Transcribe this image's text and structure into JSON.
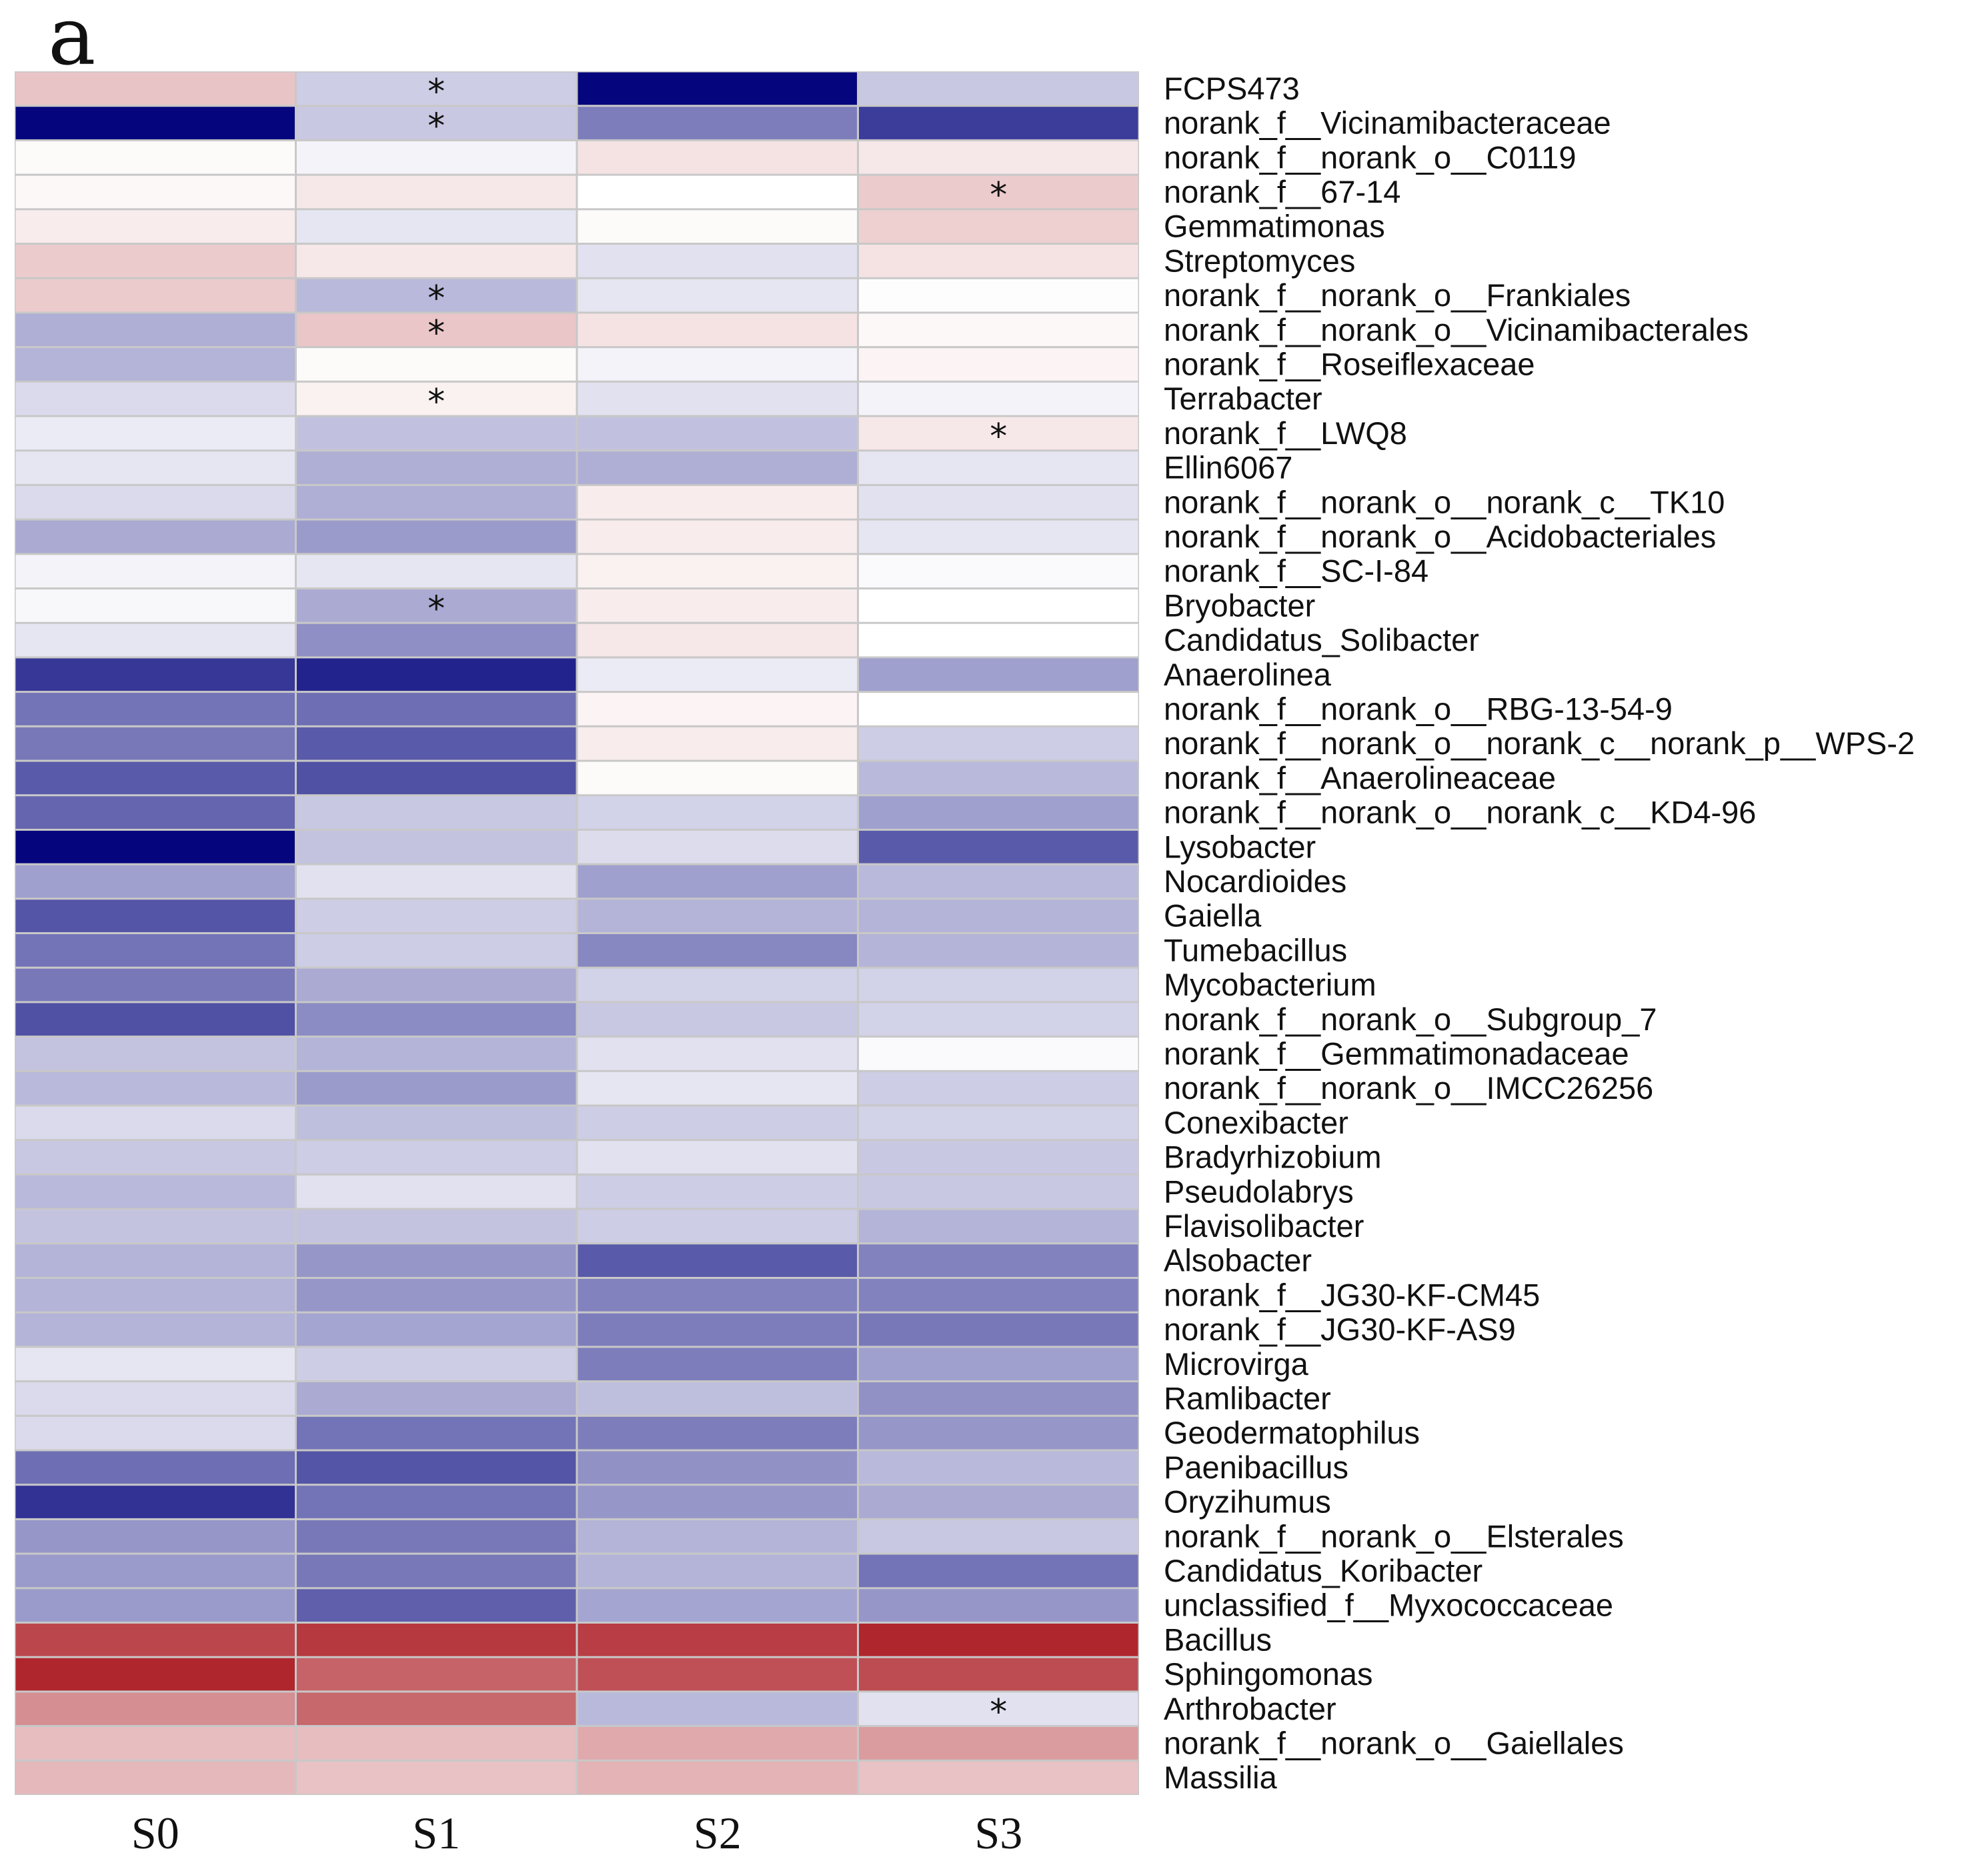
{
  "panel_label": "a",
  "chart_data": {
    "type": "heatmap",
    "title": "",
    "columns": [
      "S0",
      "S1",
      "S2",
      "S3"
    ],
    "rows": [
      "FCPS473",
      "norank_f__Vicinamibacteraceae",
      "norank_f__norank_o__C0119",
      "norank_f__67-14",
      "Gemmatimonas",
      "Streptomyces",
      "norank_f__norank_o__Frankiales",
      "norank_f__norank_o__Vicinamibacterales",
      "norank_f__Roseiflexaceae",
      "Terrabacter",
      "norank_f__LWQ8",
      "Ellin6067",
      "norank_f__norank_o__norank_c__TK10",
      "norank_f__norank_o__Acidobacteriales",
      "norank_f__SC-I-84",
      "Bryobacter",
      "Candidatus_Solibacter",
      "Anaerolinea",
      "norank_f__norank_o__RBG-13-54-9",
      "norank_f__norank_o__norank_c__norank_p__WPS-2",
      "norank_f__Anaerolineaceae",
      "norank_f__norank_o__norank_c__KD4-96",
      "Lysobacter",
      "Nocardioides",
      "Gaiella",
      "Tumebacillus",
      "Mycobacterium",
      "norank_f__norank_o__Subgroup_7",
      "norank_f__Gemmatimonadaceae",
      "norank_f__norank_o__IMCC26256",
      "Conexibacter",
      "Bradyrhizobium",
      "Pseudolabrys",
      "Flavisolibacter",
      "Alsobacter",
      "norank_f__JG30-KF-CM45",
      "norank_f__JG30-KF-AS9",
      "Microvirga",
      "Ramlibacter",
      "Geodermatophilus",
      "Paenibacillus",
      "Oryzihumus",
      "norank_f__norank_o__Elsterales",
      "Candidatus_Koribacter",
      "unclassified_f__Myxococcaceae",
      "Bacillus",
      "Sphingomonas",
      "Arthrobacter",
      "norank_f__norank_o__Gaiellales",
      "Massilia"
    ],
    "values": [
      [
        0.25,
        -0.2,
        -1.0,
        -0.22
      ],
      [
        -1.0,
        -0.22,
        -0.52,
        -0.78
      ],
      [
        0.02,
        -0.05,
        0.12,
        0.1
      ],
      [
        0.03,
        0.1,
        0.0,
        0.22
      ],
      [
        0.08,
        -0.1,
        0.02,
        0.2
      ],
      [
        0.22,
        0.1,
        -0.12,
        0.12
      ],
      [
        0.22,
        -0.28,
        -0.1,
        0.01
      ],
      [
        -0.32,
        0.24,
        0.12,
        0.03
      ],
      [
        -0.3,
        0.02,
        -0.05,
        0.05
      ],
      [
        -0.15,
        0.06,
        -0.12,
        -0.05
      ],
      [
        -0.08,
        -0.25,
        -0.25,
        0.1
      ],
      [
        -0.1,
        -0.32,
        -0.32,
        -0.1
      ],
      [
        -0.15,
        -0.32,
        0.08,
        -0.12
      ],
      [
        -0.34,
        -0.4,
        0.08,
        -0.1
      ],
      [
        -0.05,
        -0.1,
        0.06,
        -0.02
      ],
      [
        -0.03,
        -0.34,
        0.08,
        0.0
      ],
      [
        -0.1,
        -0.45,
        0.1,
        0.0
      ],
      [
        -0.8,
        -0.88,
        -0.08,
        -0.38
      ],
      [
        -0.56,
        -0.58,
        0.05,
        0.0
      ],
      [
        -0.54,
        -0.66,
        0.08,
        -0.2
      ],
      [
        -0.66,
        -0.7,
        0.02,
        -0.28
      ],
      [
        -0.62,
        -0.22,
        -0.18,
        -0.38
      ],
      [
        -1.0,
        -0.24,
        -0.14,
        -0.66
      ],
      [
        -0.38,
        -0.12,
        -0.38,
        -0.28
      ],
      [
        -0.68,
        -0.2,
        -0.3,
        -0.3
      ],
      [
        -0.56,
        -0.2,
        -0.48,
        -0.3
      ],
      [
        -0.54,
        -0.34,
        -0.18,
        -0.18
      ],
      [
        -0.7,
        -0.46,
        -0.22,
        -0.18
      ],
      [
        -0.24,
        -0.3,
        -0.12,
        -0.02
      ],
      [
        -0.28,
        -0.4,
        -0.1,
        -0.2
      ],
      [
        -0.15,
        -0.26,
        -0.2,
        -0.18
      ],
      [
        -0.22,
        -0.2,
        -0.12,
        -0.22
      ],
      [
        -0.28,
        -0.12,
        -0.2,
        -0.22
      ],
      [
        -0.24,
        -0.24,
        -0.2,
        -0.3
      ],
      [
        -0.3,
        -0.42,
        -0.66,
        -0.5
      ],
      [
        -0.3,
        -0.42,
        -0.5,
        -0.5
      ],
      [
        -0.3,
        -0.36,
        -0.52,
        -0.54
      ],
      [
        -0.1,
        -0.2,
        -0.52,
        -0.38
      ],
      [
        -0.15,
        -0.34,
        -0.26,
        -0.44
      ],
      [
        -0.15,
        -0.56,
        -0.52,
        -0.42
      ],
      [
        -0.58,
        -0.68,
        -0.44,
        -0.28
      ],
      [
        -0.82,
        -0.56,
        -0.42,
        -0.34
      ],
      [
        -0.42,
        -0.54,
        -0.3,
        -0.22
      ],
      [
        -0.4,
        -0.54,
        -0.3,
        -0.56
      ],
      [
        -0.4,
        -0.64,
        -0.36,
        -0.42
      ],
      [
        0.78,
        0.84,
        0.82,
        0.92
      ],
      [
        0.92,
        0.66,
        0.74,
        0.76
      ],
      [
        0.48,
        0.64,
        -0.28,
        -0.12
      ],
      [
        0.28,
        0.28,
        0.36,
        0.42
      ],
      [
        0.3,
        0.26,
        0.32,
        0.26
      ]
    ],
    "significance": [
      {
        "row": "FCPS473",
        "column": "S1",
        "marker": "*"
      },
      {
        "row": "norank_f__Vicinamibacteraceae",
        "column": "S1",
        "marker": "*"
      },
      {
        "row": "norank_f__67-14",
        "column": "S3",
        "marker": "*"
      },
      {
        "row": "norank_f__norank_o__Frankiales",
        "column": "S1",
        "marker": "*"
      },
      {
        "row": "norank_f__norank_o__Vicinamibacterales",
        "column": "S1",
        "marker": "*"
      },
      {
        "row": "Terrabacter",
        "column": "S1",
        "marker": "*"
      },
      {
        "row": "norank_f__LWQ8",
        "column": "S3",
        "marker": "*"
      },
      {
        "row": "Bryobacter",
        "column": "S1",
        "marker": "*"
      },
      {
        "row": "Arthrobacter",
        "column": "S3",
        "marker": "*"
      }
    ],
    "color_scale": {
      "low": "#05057e",
      "mid": "#ffffff",
      "high": "#a8131b"
    },
    "value_range": [
      -1,
      1
    ]
  }
}
